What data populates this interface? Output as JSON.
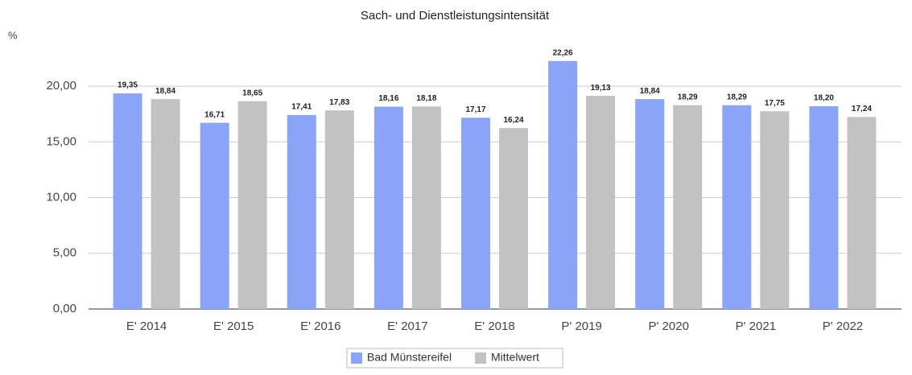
{
  "chart_data": {
    "type": "bar",
    "title": "Sach- und Dienstleistungsintensität",
    "y_label": "%",
    "categories": [
      "E' 2014",
      "E' 2015",
      "E' 2016",
      "E' 2017",
      "E' 2018",
      "P' 2019",
      "P' 2020",
      "P' 2021",
      "P' 2022"
    ],
    "series": [
      {
        "name": "Bad Münstereifel",
        "color": "#8aa4f8",
        "values": [
          19.35,
          16.71,
          17.41,
          18.16,
          17.17,
          22.26,
          18.84,
          18.29,
          18.2
        ],
        "value_labels": [
          "19,35",
          "16,71",
          "17,41",
          "18,16",
          "17,17",
          "22,26",
          "18,84",
          "18,29",
          "18,20"
        ]
      },
      {
        "name": "Mittelwert",
        "color": "#c2c2c2",
        "values": [
          18.84,
          18.65,
          17.83,
          18.18,
          16.24,
          19.13,
          18.29,
          17.75,
          17.24
        ],
        "value_labels": [
          "18,84",
          "18,65",
          "17,83",
          "18,18",
          "16,24",
          "19,13",
          "18,29",
          "17,75",
          "17,24"
        ]
      }
    ],
    "ylim": [
      0,
      23.4
    ],
    "yticks": [
      {
        "value": 0,
        "label": "0,00"
      },
      {
        "value": 5,
        "label": "5,00"
      },
      {
        "value": 10,
        "label": "10,00"
      },
      {
        "value": 15,
        "label": "15,00"
      },
      {
        "value": 20,
        "label": "20,00"
      }
    ],
    "grid": true,
    "legend": "bottom"
  }
}
